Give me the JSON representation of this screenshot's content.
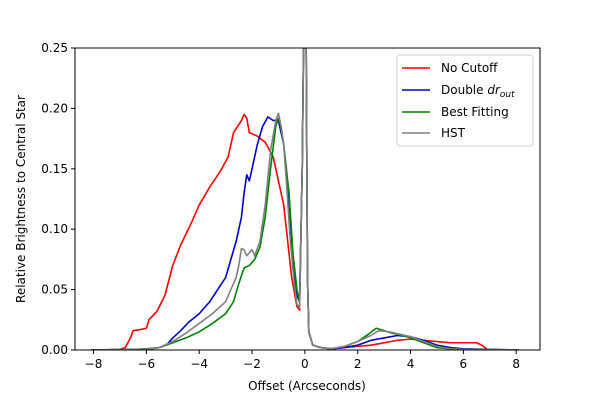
{
  "chart_data": {
    "type": "line",
    "xlabel": "Offset (Arcseconds)",
    "ylabel": "Relative Brightness to Central Star",
    "xlim": [
      -8.7,
      8.9
    ],
    "ylim": [
      0,
      0.25
    ],
    "xticks": [
      -8,
      -6,
      -4,
      -2,
      0,
      2,
      4,
      6,
      8
    ],
    "xtick_labels": [
      "−8",
      "−6",
      "−4",
      "−2",
      "0",
      "2",
      "4",
      "6",
      "8"
    ],
    "yticks": [
      0.0,
      0.05,
      0.1,
      0.15,
      0.2,
      0.25
    ],
    "ytick_labels": [
      "0.00",
      "0.05",
      "0.10",
      "0.15",
      "0.20",
      "0.25"
    ],
    "grid": false,
    "legend_position": "top-right",
    "series": [
      {
        "name": "No Cutoff",
        "color": "#ff0000",
        "points": [
          [
            -8.1,
            0
          ],
          [
            -7.0,
            0.0005
          ],
          [
            -6.8,
            0.002
          ],
          [
            -6.6,
            0.01
          ],
          [
            -6.5,
            0.016
          ],
          [
            -6.2,
            0.017
          ],
          [
            -6.0,
            0.018
          ],
          [
            -5.9,
            0.025
          ],
          [
            -5.6,
            0.032
          ],
          [
            -5.3,
            0.045
          ],
          [
            -5.0,
            0.07
          ],
          [
            -4.7,
            0.087
          ],
          [
            -4.3,
            0.105
          ],
          [
            -4.0,
            0.12
          ],
          [
            -3.6,
            0.135
          ],
          [
            -3.2,
            0.148
          ],
          [
            -2.9,
            0.16
          ],
          [
            -2.7,
            0.18
          ],
          [
            -2.4,
            0.19
          ],
          [
            -2.3,
            0.195
          ],
          [
            -2.2,
            0.192
          ],
          [
            -2.1,
            0.18
          ],
          [
            -1.8,
            0.177
          ],
          [
            -1.5,
            0.172
          ],
          [
            -1.2,
            0.16
          ],
          [
            -0.8,
            0.12
          ],
          [
            -0.5,
            0.06
          ],
          [
            -0.3,
            0.036
          ],
          [
            -0.2,
            0.033
          ],
          [
            -0.1,
            0.15
          ],
          [
            -0.05,
            0.25
          ],
          [
            0.05,
            0.25
          ],
          [
            0.1,
            0.06
          ],
          [
            0.15,
            0.015
          ],
          [
            0.3,
            0.004
          ],
          [
            0.6,
            0.002
          ],
          [
            1.0,
            0.001
          ],
          [
            1.5,
            0.002
          ],
          [
            2.0,
            0.003
          ],
          [
            2.5,
            0.004
          ],
          [
            3.0,
            0.006
          ],
          [
            3.5,
            0.008
          ],
          [
            4.0,
            0.009
          ],
          [
            4.5,
            0.008
          ],
          [
            5.0,
            0.007
          ],
          [
            5.5,
            0.006
          ],
          [
            6.0,
            0.006
          ],
          [
            6.5,
            0.006
          ],
          [
            6.7,
            0.004
          ],
          [
            6.9,
            0.0005
          ],
          [
            8.1,
            0
          ]
        ]
      },
      {
        "name": "Double dr_out",
        "name_main": "Double ",
        "name_var": "dr",
        "name_sub": "out",
        "color": "#0000cc",
        "points": [
          [
            -8.1,
            0
          ],
          [
            -6.0,
            0.0005
          ],
          [
            -5.5,
            0.002
          ],
          [
            -5.2,
            0.005
          ],
          [
            -5.0,
            0.01
          ],
          [
            -4.7,
            0.016
          ],
          [
            -4.4,
            0.023
          ],
          [
            -4.0,
            0.03
          ],
          [
            -3.6,
            0.04
          ],
          [
            -3.3,
            0.05
          ],
          [
            -3.0,
            0.06
          ],
          [
            -2.8,
            0.075
          ],
          [
            -2.6,
            0.09
          ],
          [
            -2.4,
            0.11
          ],
          [
            -2.3,
            0.13
          ],
          [
            -2.2,
            0.145
          ],
          [
            -2.1,
            0.14
          ],
          [
            -2.0,
            0.15
          ],
          [
            -1.8,
            0.17
          ],
          [
            -1.6,
            0.185
          ],
          [
            -1.4,
            0.193
          ],
          [
            -1.2,
            0.19
          ],
          [
            -1.0,
            0.19
          ],
          [
            -0.8,
            0.17
          ],
          [
            -0.6,
            0.12
          ],
          [
            -0.4,
            0.06
          ],
          [
            -0.3,
            0.045
          ],
          [
            -0.2,
            0.04
          ],
          [
            -0.1,
            0.15
          ],
          [
            -0.05,
            0.25
          ],
          [
            0.05,
            0.25
          ],
          [
            0.1,
            0.06
          ],
          [
            0.15,
            0.015
          ],
          [
            0.3,
            0.004
          ],
          [
            0.6,
            0.002
          ],
          [
            1.0,
            0.001
          ],
          [
            1.5,
            0.002
          ],
          [
            2.0,
            0.004
          ],
          [
            2.5,
            0.008
          ],
          [
            3.0,
            0.01
          ],
          [
            3.5,
            0.012
          ],
          [
            4.0,
            0.011
          ],
          [
            4.5,
            0.008
          ],
          [
            5.0,
            0.004
          ],
          [
            5.5,
            0.002
          ],
          [
            6.0,
            0.001
          ],
          [
            7.0,
            0.0005
          ],
          [
            8.1,
            0
          ]
        ]
      },
      {
        "name": "Best Fitting",
        "color": "#008000",
        "points": [
          [
            -8.1,
            0
          ],
          [
            -6.5,
            0.0005
          ],
          [
            -6.0,
            0.001
          ],
          [
            -5.5,
            0.002
          ],
          [
            -5.0,
            0.006
          ],
          [
            -4.5,
            0.01
          ],
          [
            -4.0,
            0.015
          ],
          [
            -3.5,
            0.022
          ],
          [
            -3.0,
            0.03
          ],
          [
            -2.7,
            0.04
          ],
          [
            -2.5,
            0.055
          ],
          [
            -2.3,
            0.068
          ],
          [
            -2.1,
            0.07
          ],
          [
            -1.9,
            0.075
          ],
          [
            -1.7,
            0.085
          ],
          [
            -1.5,
            0.11
          ],
          [
            -1.3,
            0.15
          ],
          [
            -1.1,
            0.185
          ],
          [
            -1.0,
            0.192
          ],
          [
            -0.9,
            0.185
          ],
          [
            -0.8,
            0.17
          ],
          [
            -0.6,
            0.13
          ],
          [
            -0.45,
            0.08
          ],
          [
            -0.3,
            0.05
          ],
          [
            -0.2,
            0.04
          ],
          [
            -0.1,
            0.15
          ],
          [
            -0.05,
            0.25
          ],
          [
            0.05,
            0.25
          ],
          [
            0.1,
            0.06
          ],
          [
            0.15,
            0.015
          ],
          [
            0.3,
            0.004
          ],
          [
            0.6,
            0.002
          ],
          [
            1.0,
            0.001
          ],
          [
            1.5,
            0.003
          ],
          [
            2.0,
            0.007
          ],
          [
            2.4,
            0.013
          ],
          [
            2.7,
            0.018
          ],
          [
            3.0,
            0.016
          ],
          [
            3.3,
            0.014
          ],
          [
            3.7,
            0.012
          ],
          [
            4.0,
            0.01
          ],
          [
            4.5,
            0.006
          ],
          [
            5.0,
            0.002
          ],
          [
            5.5,
            0.001
          ],
          [
            6.0,
            0.0005
          ],
          [
            8.1,
            0
          ]
        ]
      },
      {
        "name": "HST",
        "color": "#808080",
        "points": [
          [
            -8.1,
            0
          ],
          [
            -6.0,
            0.0005
          ],
          [
            -5.5,
            0.002
          ],
          [
            -5.0,
            0.007
          ],
          [
            -4.5,
            0.014
          ],
          [
            -4.0,
            0.022
          ],
          [
            -3.5,
            0.03
          ],
          [
            -3.0,
            0.04
          ],
          [
            -2.8,
            0.05
          ],
          [
            -2.6,
            0.06
          ],
          [
            -2.5,
            0.07
          ],
          [
            -2.4,
            0.084
          ],
          [
            -2.3,
            0.083
          ],
          [
            -2.2,
            0.078
          ],
          [
            -2.0,
            0.083
          ],
          [
            -1.9,
            0.078
          ],
          [
            -1.7,
            0.09
          ],
          [
            -1.5,
            0.12
          ],
          [
            -1.3,
            0.165
          ],
          [
            -1.1,
            0.19
          ],
          [
            -1.0,
            0.196
          ],
          [
            -0.9,
            0.185
          ],
          [
            -0.8,
            0.17
          ],
          [
            -0.7,
            0.14
          ],
          [
            -0.55,
            0.09
          ],
          [
            -0.4,
            0.055
          ],
          [
            -0.3,
            0.038
          ],
          [
            -0.2,
            0.035
          ],
          [
            -0.1,
            0.15
          ],
          [
            -0.05,
            0.25
          ],
          [
            0.05,
            0.25
          ],
          [
            0.1,
            0.06
          ],
          [
            0.15,
            0.015
          ],
          [
            0.3,
            0.004
          ],
          [
            0.6,
            0.002
          ],
          [
            1.0,
            0.001
          ],
          [
            1.5,
            0.003
          ],
          [
            2.0,
            0.007
          ],
          [
            2.5,
            0.012
          ],
          [
            2.8,
            0.016
          ],
          [
            3.2,
            0.015
          ],
          [
            3.6,
            0.013
          ],
          [
            4.0,
            0.011
          ],
          [
            4.5,
            0.007
          ],
          [
            5.0,
            0.003
          ],
          [
            5.5,
            0.001
          ],
          [
            6.0,
            0.0005
          ],
          [
            8.1,
            0
          ]
        ]
      }
    ]
  }
}
